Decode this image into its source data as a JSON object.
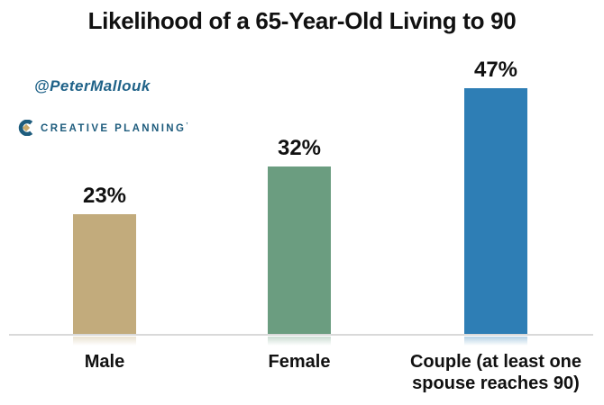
{
  "title": "Likelihood of a 65-Year-Old Living to 90",
  "attribution": {
    "handle": "@PeterMallouk"
  },
  "brand": {
    "name": "CREATIVE PLANNING",
    "mark": "’"
  },
  "chart_data": {
    "type": "bar",
    "title": "Likelihood of a 65-Year-Old Living to 90",
    "categories": [
      "Male",
      "Female",
      "Couple (at least one spouse reaches 90)"
    ],
    "values": [
      23,
      32,
      47
    ],
    "value_labels": [
      "23%",
      "32%",
      "47%"
    ],
    "bar_colors": [
      "#C2AB7C",
      "#6B9D80",
      "#2E7EB5"
    ],
    "ylabel": "",
    "xlabel": "",
    "ylim": [
      0,
      50
    ],
    "grid": false,
    "legend": "none",
    "baseline_color": "#D9D9D9"
  },
  "colors": {
    "handle_text": "#1F6288",
    "brand_text": "#1E5C7D",
    "brand_gold": "#C9A96A",
    "title_text": "#111111"
  }
}
